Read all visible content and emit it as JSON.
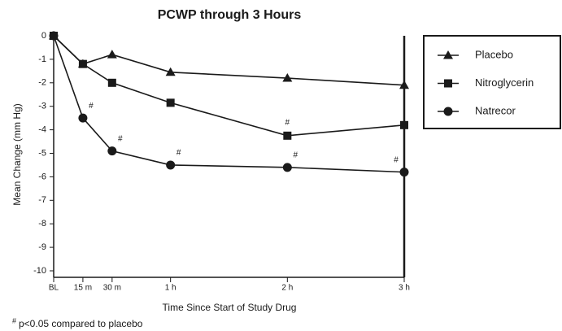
{
  "chart_data": {
    "type": "line",
    "title": "PCWP through 3 Hours",
    "x_label": "Time Since Start of Study Drug",
    "y_label": "Mean Change (mm Hg)",
    "x": [
      0,
      15,
      30,
      60,
      120,
      180
    ],
    "xlim": [
      0,
      180
    ],
    "xticks": [
      {
        "value": 0,
        "label": "BL"
      },
      {
        "value": 15,
        "label": "15 m"
      },
      {
        "value": 30,
        "label": "30 m"
      },
      {
        "value": 60,
        "label": "1 h"
      },
      {
        "value": 120,
        "label": "2 h"
      },
      {
        "value": 180,
        "label": "3 h"
      }
    ],
    "ylim": [
      -10,
      0
    ],
    "yticks": [
      0,
      -1,
      -2,
      -3,
      -4,
      -5,
      -6,
      -7,
      -8,
      -9,
      -10
    ],
    "legend_position": "right",
    "series": [
      {
        "name": "Placebo",
        "color": "#1a1a1a",
        "marker": "triangle",
        "values": [
          0,
          -1.2,
          -0.8,
          -1.55,
          -1.8,
          -2.1
        ]
      },
      {
        "name": "Nitroglycerin",
        "color": "#1a1a1a",
        "marker": "square",
        "values": [
          0,
          -1.2,
          -2.0,
          -2.85,
          -4.25,
          -3.8
        ],
        "notes": [
          null,
          null,
          null,
          null,
          "#",
          null
        ]
      },
      {
        "name": "Natrecor",
        "color": "#1a1a1a",
        "marker": "circle",
        "values": [
          0,
          -3.5,
          -4.9,
          -5.5,
          -5.6,
          -5.8
        ],
        "notes": [
          null,
          "#",
          "#",
          "#",
          "#",
          "#"
        ]
      }
    ],
    "footnote": {
      "marker": "#",
      "text": "p<0.05 compared to placebo"
    }
  }
}
